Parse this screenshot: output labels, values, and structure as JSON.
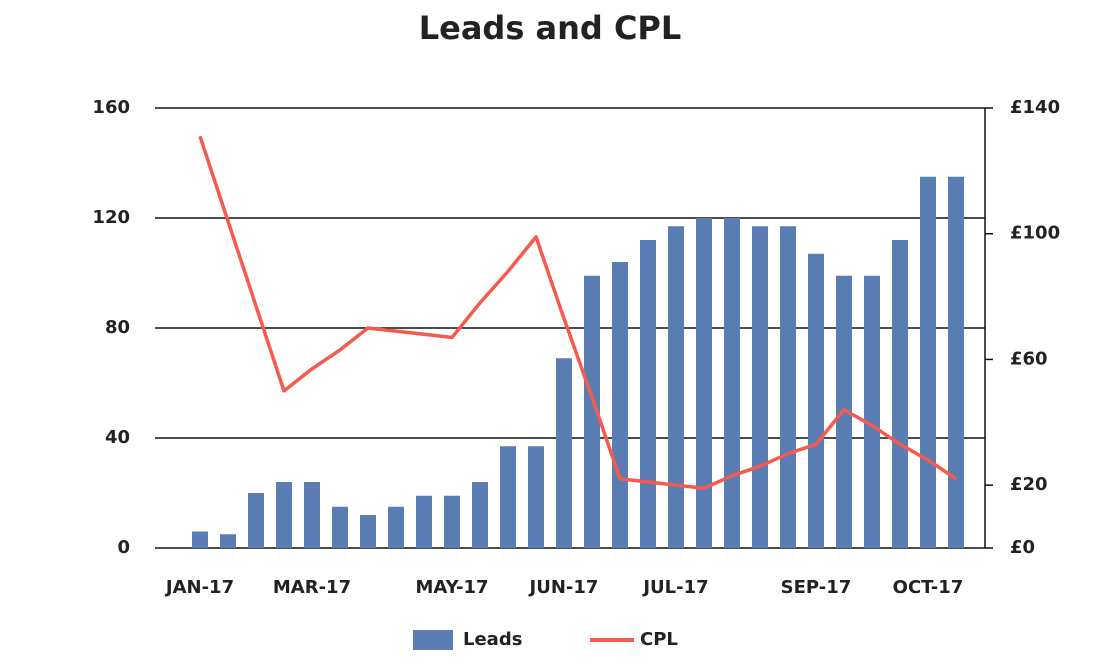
{
  "chart_data": {
    "type": "bar-line",
    "title": "Leads and CPL",
    "categories": [
      "JAN-17",
      null,
      null,
      null,
      "MAR-17",
      null,
      null,
      null,
      null,
      "MAY-17",
      null,
      null,
      null,
      "JUN-17",
      null,
      null,
      null,
      "JUL-17",
      null,
      null,
      null,
      null,
      "SEP-17",
      null,
      null,
      null,
      "OCT-17",
      null
    ],
    "series": [
      {
        "name": "Leads",
        "type": "bar",
        "color": "#5a7db3",
        "values": [
          6,
          5,
          20,
          24,
          24,
          15,
          12,
          15,
          19,
          19,
          24,
          37,
          37,
          69,
          99,
          104,
          112,
          117,
          120,
          120,
          117,
          117,
          107,
          99,
          99,
          112,
          135,
          135
        ]
      },
      {
        "name": "CPL",
        "type": "line",
        "axis": "y2",
        "color": "#f55a4e",
        "values": [
          131,
          104,
          77,
          50,
          57,
          63,
          70,
          69,
          68,
          67,
          78,
          88,
          99,
          73,
          48,
          22,
          21,
          20,
          19,
          23,
          26,
          30,
          33,
          44,
          39,
          33,
          28,
          22
        ]
      }
    ],
    "ylim": [
      0,
      160
    ],
    "yticks": [
      0,
      40,
      80,
      120,
      160
    ],
    "y2lim": [
      0,
      140
    ],
    "y2ticks": [
      {
        "value": 0,
        "label": "£0"
      },
      {
        "value": 20,
        "label": "£20"
      },
      {
        "value": 60,
        "label": "£60"
      },
      {
        "value": 100,
        "label": "£100"
      },
      {
        "value": 140,
        "label": "£140"
      }
    ],
    "grid": true,
    "legend": "bottom"
  }
}
